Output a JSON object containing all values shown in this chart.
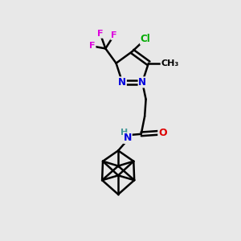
{
  "bg_color": "#e8e8e8",
  "bond_color": "#000000",
  "bond_width": 1.8,
  "atom_colors": {
    "C": "#000000",
    "N": "#0000dd",
    "O": "#dd0000",
    "F": "#dd00dd",
    "Cl": "#00aa00",
    "H": "#449999"
  },
  "font_size": 9,
  "fig_size": [
    3.0,
    3.0
  ],
  "dpi": 100,
  "xlim": [
    0,
    10
  ],
  "ylim": [
    0,
    10
  ]
}
